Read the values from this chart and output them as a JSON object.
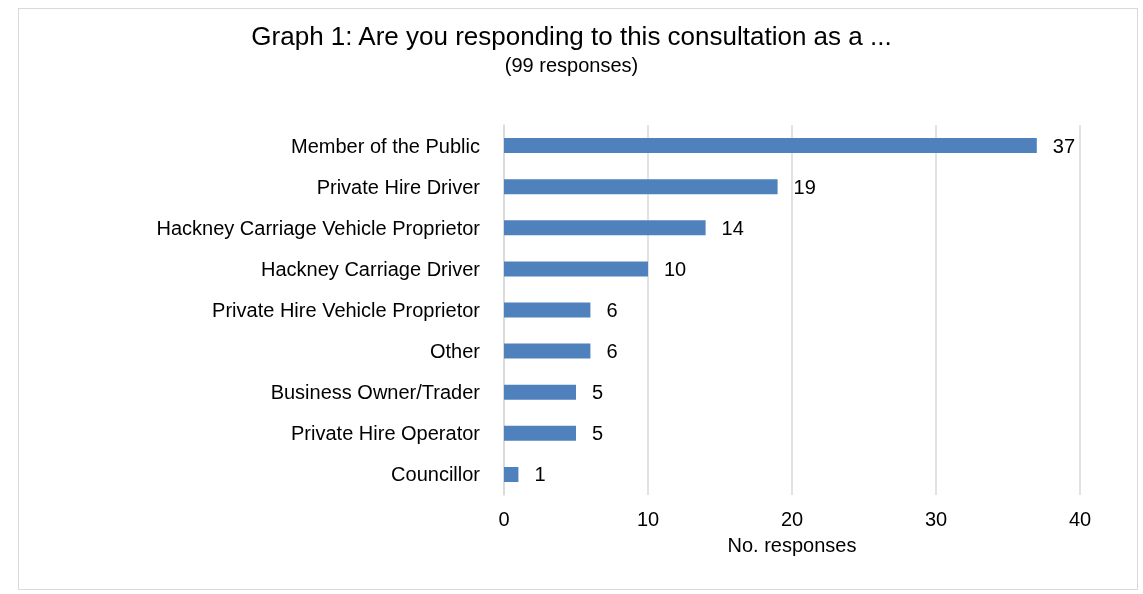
{
  "chart_data": {
    "type": "bar",
    "orientation": "horizontal",
    "title": "Graph 1: Are you responding to this consultation as a ...",
    "subtitle": "(99 responses)",
    "xlabel": "No. responses",
    "categories": [
      "Member of the Public",
      "Private Hire Driver",
      "Hackney Carriage Vehicle Proprietor",
      "Hackney Carriage Driver",
      "Private Hire Vehicle Proprietor",
      "Other",
      "Business Owner/Trader",
      "Private Hire Operator",
      "Councillor"
    ],
    "values": [
      37,
      19,
      14,
      10,
      6,
      6,
      5,
      5,
      1
    ],
    "color": "#4f81bd",
    "xlim": [
      0,
      40
    ],
    "xticks": [
      0,
      10,
      20,
      30,
      40
    ],
    "grid": "x",
    "data_labels": true
  }
}
